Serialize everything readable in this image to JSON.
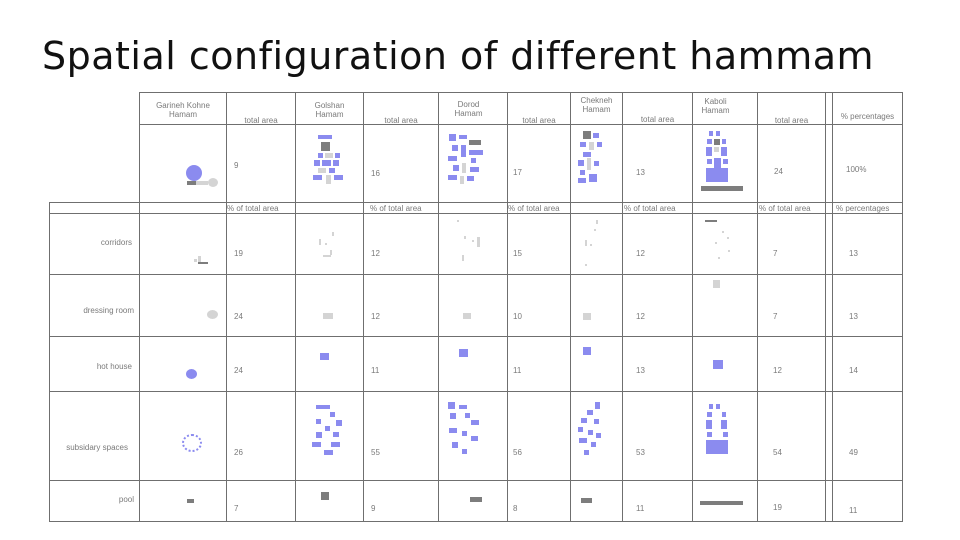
{
  "title": "Spatial configuration of different hammam",
  "colors": {
    "space": "#8b8bef",
    "dark": "#7d7d7d",
    "light": "#d4d4d4"
  },
  "table": {
    "hammams": [
      {
        "name_line1": "Garineh Kohne",
        "name_line2": "Hamam",
        "total_area_label": "total area",
        "total_value": "9",
        "percent_label": "% of total area"
      },
      {
        "name_line1": "Golshan",
        "name_line2": "Hamam",
        "total_area_label": "total area",
        "total_value": "16",
        "percent_label": "% of total area"
      },
      {
        "name_line1": "Dorod",
        "name_line2": "Hamam",
        "total_area_label": "total area",
        "total_value": "17",
        "percent_label": "% of total area"
      },
      {
        "name_line1": "Chekneh",
        "name_line2": "Hamam",
        "total_area_label": "total area",
        "total_value": "13",
        "percent_label": "% of total area"
      },
      {
        "name_line1": "Kaboli",
        "name_line2": "Hamam",
        "total_area_label": "total area",
        "total_value": "24",
        "percent_label": "% of total area"
      }
    ],
    "percentages_label": "% percentages",
    "total_percentage": "100%",
    "rows": [
      {
        "label": "corridors",
        "values": [
          "19",
          "12",
          "15",
          "12",
          "7"
        ],
        "percentage": "13"
      },
      {
        "label": "dressing room",
        "values": [
          "24",
          "12",
          "10",
          "12",
          "7"
        ],
        "percentage": "13"
      },
      {
        "label": "hot house",
        "values": [
          "24",
          "11",
          "11",
          "13",
          "12"
        ],
        "percentage": "14"
      },
      {
        "label": "subsidary spaces",
        "values": [
          "26",
          "55",
          "56",
          "53",
          "54"
        ],
        "percentage": "49"
      },
      {
        "label": "pool",
        "values": [
          "7",
          "9",
          "8",
          "11",
          "19"
        ],
        "percentage": "11"
      }
    ]
  }
}
